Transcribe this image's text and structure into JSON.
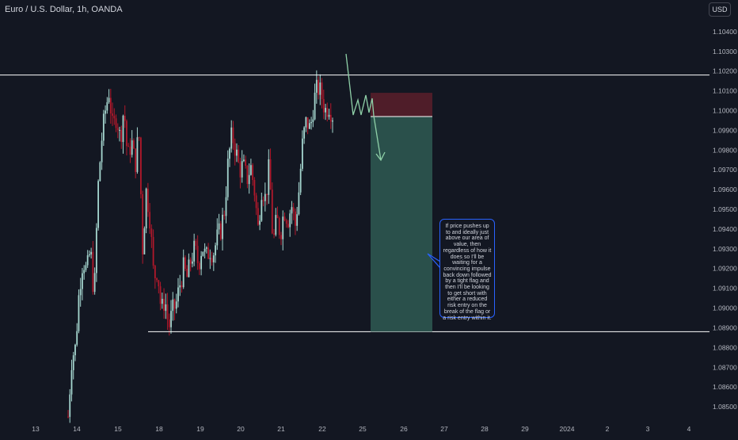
{
  "header": {
    "title": "Euro / U.S. Dollar, 1h, OANDA",
    "currency": "USD"
  },
  "colors": {
    "background": "#131722",
    "up_candle": "#a5d6cf",
    "down_candle": "#b2182b",
    "axis_text": "#b2b5be",
    "line": "#ffffff",
    "projection": "#8fd0a8",
    "reward_zone": "#2f5b52",
    "risk_zone": "#5a1f2a",
    "note_border": "#2962ff"
  },
  "chart_data": {
    "type": "candlestick",
    "y_axis": {
      "ticks": [
        "1.10400",
        "1.10300",
        "1.10200",
        "1.10100",
        "1.10000",
        "1.09900",
        "1.09800",
        "1.09700",
        "1.09600",
        "1.09500",
        "1.09400",
        "1.09300",
        "1.09200",
        "1.09100",
        "1.09000",
        "1.08900",
        "1.08800",
        "1.08700",
        "1.08600",
        "1.08500"
      ],
      "range": [
        1.0844,
        1.1052
      ],
      "position": "right"
    },
    "x_axis": {
      "ticks": [
        "13",
        "14",
        "15",
        "18",
        "19",
        "20",
        "21",
        "22",
        "25",
        "26",
        "27",
        "28",
        "29",
        "2024",
        "2",
        "3",
        "4"
      ]
    },
    "price_path": [
      1.0845,
      1.0875,
      1.088,
      1.091,
      1.0925,
      1.0918,
      1.093,
      1.0905,
      1.096,
      1.0985,
      1.1,
      1.101,
      1.099,
      1.0998,
      1.0985,
      1.1002,
      1.0975,
      1.0985,
      1.0972,
      1.099,
      1.093,
      1.096,
      1.0945,
      1.0915,
      1.092,
      1.0898,
      1.0905,
      1.089,
      1.0898,
      1.0902,
      1.0912,
      1.092,
      1.0915,
      1.0925,
      1.093,
      1.0922,
      1.0932,
      1.0925,
      1.093,
      1.0928,
      1.0935,
      1.094,
      1.095,
      1.0975,
      1.0988,
      1.098,
      1.097,
      1.0972,
      1.0965,
      1.0972,
      1.096,
      1.094,
      1.0962,
      1.0955,
      1.0972,
      1.0932,
      1.0945,
      1.0938,
      1.095,
      1.0945,
      1.0952,
      1.0942,
      1.096,
      1.0985,
      1.0995,
      1.099,
      1.1005,
      1.1012,
      1.1008,
      1.1,
      1.1003,
      1.0998
    ],
    "horizontal_levels": [
      1.1018,
      1.0888
    ],
    "position_tool": {
      "entry": 1.0997,
      "stop": 1.1009,
      "target": 1.0888
    },
    "projection_path_desc": "arrows",
    "annotation": "If price pushes up to and ideally just above our area of value, then regardless of how it does so I'll be waiting for a convincing impulse back down followed by a tight flag and then I'll be looking to get short with either a reduced risk entry on the break of the flag or a risk entry within it."
  }
}
